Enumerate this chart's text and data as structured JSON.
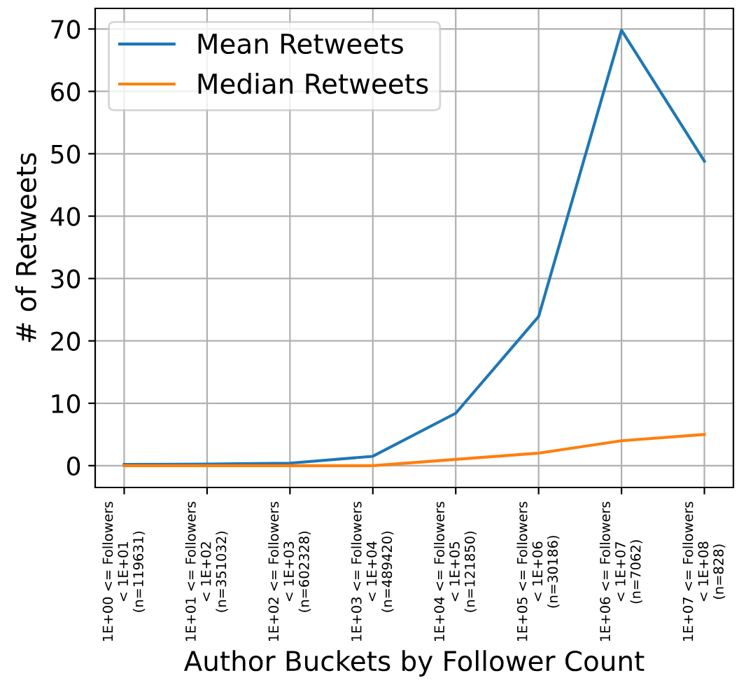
{
  "chart_data": {
    "type": "line",
    "xlabel": "Author Buckets by Follower Count",
    "ylabel": "# of Retweets",
    "categories": [
      "1E+00 <= Followers\n< 1E+01\n(n=119631)",
      "1E+01 <= Followers\n< 1E+02\n(n=351032)",
      "1E+02 <= Followers\n< 1E+03\n(n=602328)",
      "1E+03 <= Followers\n< 1E+04\n(n=489420)",
      "1E+04 <= Followers\n< 1E+05\n(n=121850)",
      "1E+05 <= Followers\n< 1E+06\n(n=30186)",
      "1E+06 <= Followers\n< 1E+07\n(n=7062)",
      "1E+07 <= Followers\n< 1E+08\n(n=828)"
    ],
    "series": [
      {
        "name": "Mean Retweets",
        "color": "#1f77b4",
        "values": [
          0.2,
          0.25,
          0.4,
          1.5,
          8.4,
          23.9,
          69.8,
          48.8
        ]
      },
      {
        "name": "Median Retweets",
        "color": "#ff7f0e",
        "values": [
          0,
          0,
          0,
          0,
          1,
          2,
          4,
          5
        ]
      }
    ],
    "ylim": [
      -3.5,
      73.3
    ],
    "yticks": [
      0,
      10,
      20,
      30,
      40,
      50,
      60,
      70
    ],
    "grid": true,
    "legend": "top left",
    "marker": "none",
    "line_style": "solid"
  }
}
